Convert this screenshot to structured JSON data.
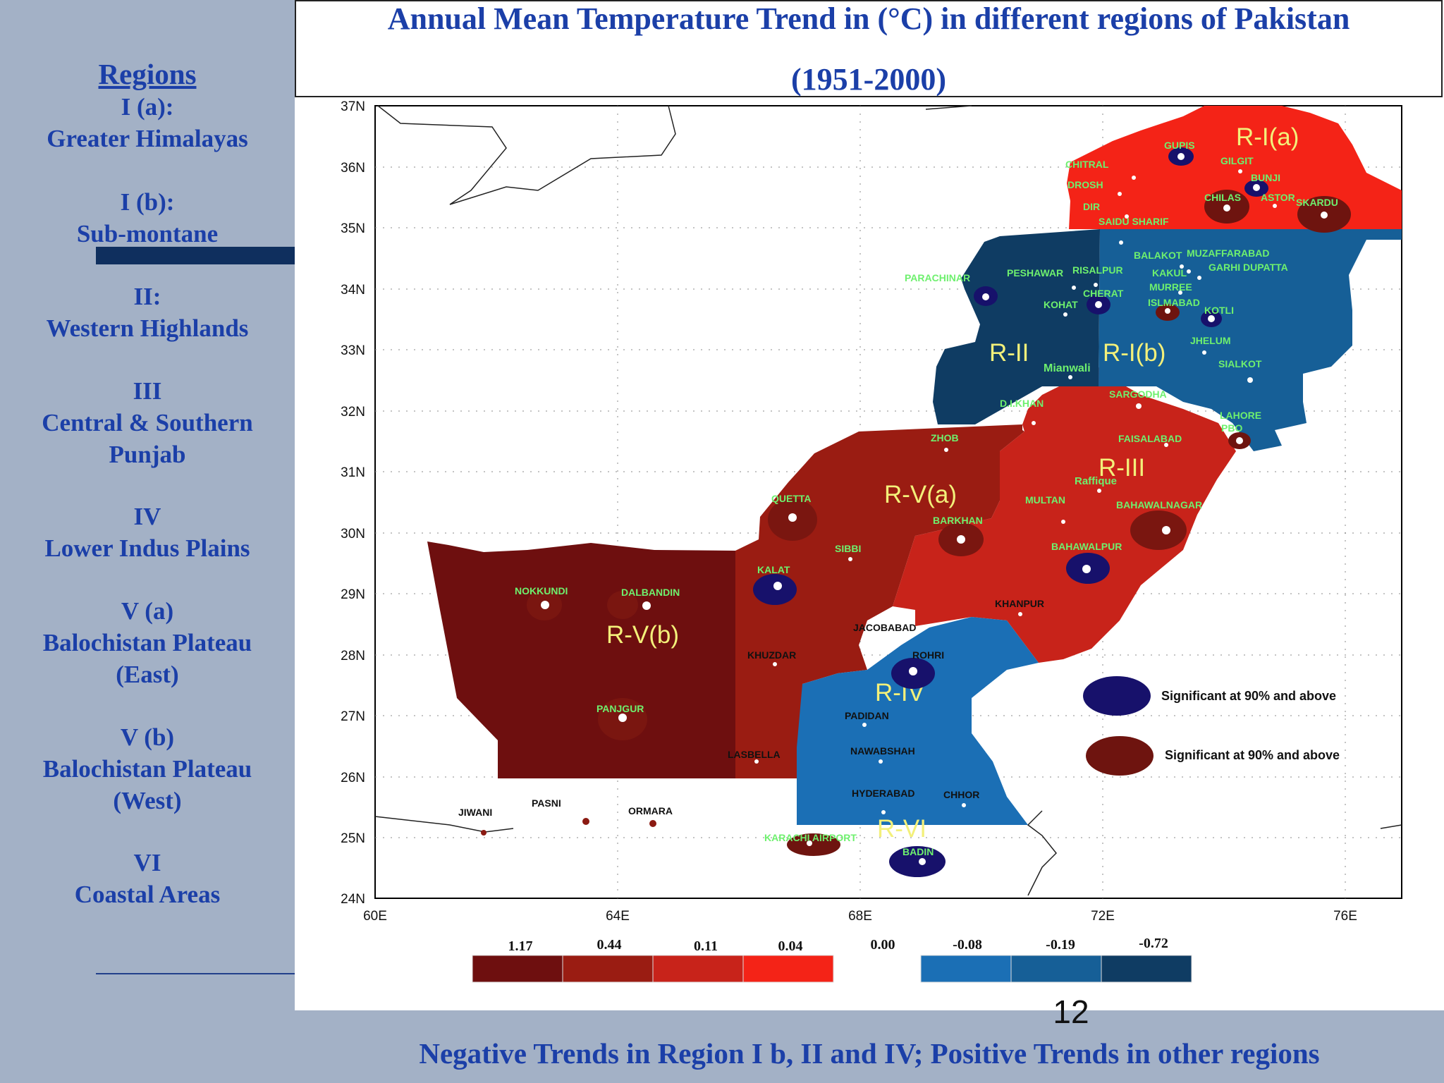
{
  "title": {
    "line1": "Annual Mean Temperature Trend in (°C) in different regions of Pakistan",
    "line2": "(1951-2000)"
  },
  "sidebar": {
    "heading": "Regions",
    "regions": [
      {
        "code": "I (a):",
        "name": "Greater Himalayas"
      },
      {
        "code": "I (b):",
        "name": "Sub-montane"
      },
      {
        "code": "II:",
        "name": "Western Highlands"
      },
      {
        "code": "III",
        "name": "Central & Southern Punjab"
      },
      {
        "code": "IV",
        "name": "Lower Indus Plains"
      },
      {
        "code": "V (a)",
        "name": "Balochistan Plateau (East)"
      },
      {
        "code": "V (b)",
        "name": "Balochistan Plateau (West)"
      },
      {
        "code": "VI",
        "name": "Coastal Areas"
      }
    ]
  },
  "map": {
    "lat_ticks": [
      "37N",
      "36N",
      "35N",
      "34N",
      "33N",
      "32N",
      "31N",
      "30N",
      "29N",
      "28N",
      "27N",
      "26N",
      "25N",
      "24N"
    ],
    "lon_ticks": [
      "60E",
      "64E",
      "68E",
      "72E",
      "76E"
    ],
    "region_labels": [
      "R-I(a)",
      "R-I(b)",
      "R-II",
      "R-III",
      "R-IV",
      "R-V(a)",
      "R-V(b)",
      "R-VI"
    ],
    "stations": [
      "GUPIS",
      "CHITRAL",
      "GILGIT",
      "BUNJI",
      "DROSH",
      "CHILAS",
      "ASTOR",
      "SKARDU",
      "DIR",
      "SAIDU SHARIF",
      "BALAKOT",
      "MUZAFFARABAD",
      "GARHI DUPATTA",
      "KAKUL",
      "PARACHINAR",
      "PESHAWAR",
      "RISALPUR",
      "MURREE",
      "CHERAT",
      "KOHAT",
      "ISLMABAD",
      "KOTLI",
      "JHELUM",
      "Mianwali",
      "SIALKOT",
      "SARGODHA",
      "D.I.KHAN",
      "LAHORE PBO",
      "ZHOB",
      "FAISALABAD",
      "Raffique",
      "QUETTA",
      "MULTAN",
      "BAHAWALNAGAR",
      "BARKHAN",
      "SIBBI",
      "BAHAWALPUR",
      "KALAT",
      "NOKKUNDI",
      "DALBANDIN",
      "KHANPUR",
      "JACOBABAD",
      "KHUZDAR",
      "ROHRI",
      "PANJGUR",
      "PADIDAN",
      "LASBELLA",
      "NAWABSHAH",
      "HYDERABAD",
      "CHHOR",
      "JIWANI",
      "PASNI",
      "ORMARA",
      "KARACHI AIRPORT",
      "BADIN"
    ],
    "legend": [
      {
        "label": "Significant at 90% and above",
        "color": "#17116b"
      },
      {
        "label": "Significant at 90% and above",
        "color": "#6e140f"
      }
    ],
    "colorbar": {
      "labels": [
        "1.17",
        "0.44",
        "0.11",
        "0.04",
        "0.00",
        "-0.08",
        "-0.19",
        "-0.72"
      ],
      "colors": [
        "#6e0f0f",
        "#9a1c12",
        "#c8231a",
        "#f42317",
        "#1b6fb5",
        "#165f97",
        "#0f3c63"
      ]
    },
    "colors": {
      "region_I_a": "#f42317",
      "region_I_b": "#165f97",
      "region_II": "#0f3c63",
      "region_III": "#c8231a",
      "region_IV": "#1b6fb5",
      "region_V_a": "#9a1c12",
      "region_V_b": "#6e0f0f"
    }
  },
  "page_number": "12",
  "footer": "Negative Trends in Region I b, II and IV; Positive Trends in other regions"
}
